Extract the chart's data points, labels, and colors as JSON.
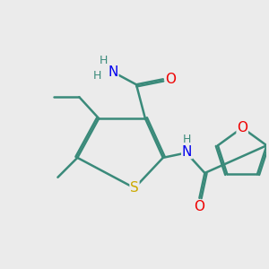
{
  "background_color": "#ebebeb",
  "atom_colors": {
    "C": "#3a8a7a",
    "N": "#0000ee",
    "O": "#ee0000",
    "S": "#ccaa00",
    "H": "#3a8a7a"
  },
  "bond_color": "#3a8a7a",
  "bond_width": 1.8
}
